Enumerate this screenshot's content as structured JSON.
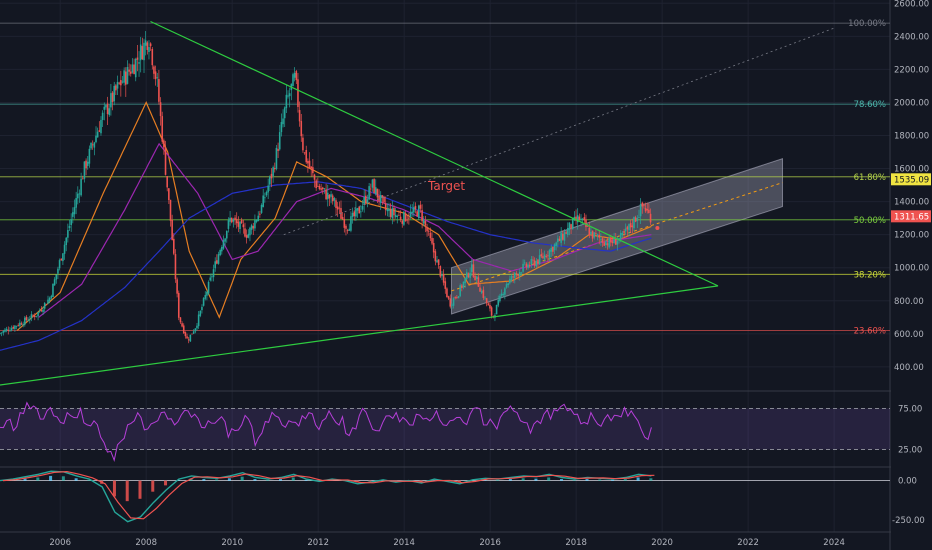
{
  "colors": {
    "background": "#131722",
    "grid": "#1e2230",
    "axis_text": "#b2b5be",
    "candle_up": "#26a69a",
    "candle_down": "#ef5350",
    "ma_orange": "#e67e22",
    "ma_purple": "#9c27b0",
    "ma_blue": "#2432c8",
    "triangle": "#2ecc40",
    "channel_fill": "rgba(180,180,200,0.35)",
    "target": "#ef5350",
    "rsi_line": "#b53fd8",
    "rsi_band": "rgba(126,87,194,0.18)",
    "macd_line": "#26a69a",
    "signal_line": "#ef5350"
  },
  "chart_data": [
    {
      "type": "candlestick",
      "xlabel": "",
      "ylabel": "",
      "x_ticks": [
        "2006",
        "2008",
        "2010",
        "2012",
        "2014",
        "2016",
        "2018",
        "2020",
        "2022",
        "2024"
      ],
      "x_range": [
        2004.6,
        2025.3
      ],
      "y_ticks": [
        "400.00",
        "600.00",
        "800.00",
        "1000.00",
        "1200.00",
        "1400.00",
        "1600.00",
        "1800.00",
        "2000.00",
        "2200.00",
        "2400.00",
        "2600.00"
      ],
      "ylim": [
        260,
        2620
      ],
      "price_path": [
        [
          2004.6,
          600
        ],
        [
          2005.0,
          650
        ],
        [
          2005.5,
          720
        ],
        [
          2005.8,
          820
        ],
        [
          2006.2,
          1200
        ],
        [
          2006.6,
          1600
        ],
        [
          2007.0,
          1900
        ],
        [
          2007.4,
          2100
        ],
        [
          2007.8,
          2250
        ],
        [
          2008.1,
          2400
        ],
        [
          2008.3,
          2100
        ],
        [
          2008.6,
          1300
        ],
        [
          2008.8,
          700
        ],
        [
          2009.0,
          560
        ],
        [
          2009.2,
          650
        ],
        [
          2009.5,
          900
        ],
        [
          2009.8,
          1150
        ],
        [
          2010.0,
          1300
        ],
        [
          2010.4,
          1200
        ],
        [
          2010.7,
          1350
        ],
        [
          2011.0,
          1600
        ],
        [
          2011.3,
          2000
        ],
        [
          2011.5,
          2150
        ],
        [
          2011.7,
          1700
        ],
        [
          2012.0,
          1500
        ],
        [
          2012.4,
          1400
        ],
        [
          2012.7,
          1250
        ],
        [
          2013.0,
          1350
        ],
        [
          2013.3,
          1500
        ],
        [
          2013.6,
          1350
        ],
        [
          2014.0,
          1300
        ],
        [
          2014.4,
          1350
        ],
        [
          2014.6,
          1200
        ],
        [
          2014.9,
          950
        ],
        [
          2015.1,
          780
        ],
        [
          2015.3,
          850
        ],
        [
          2015.6,
          1000
        ],
        [
          2015.9,
          820
        ],
        [
          2016.1,
          700
        ],
        [
          2016.4,
          900
        ],
        [
          2016.8,
          1000
        ],
        [
          2017.2,
          1050
        ],
        [
          2017.6,
          1150
        ],
        [
          2017.9,
          1250
        ],
        [
          2018.1,
          1300
        ],
        [
          2018.4,
          1200
        ],
        [
          2018.8,
          1150
        ],
        [
          2019.1,
          1180
        ],
        [
          2019.3,
          1250
        ],
        [
          2019.6,
          1380
        ],
        [
          2019.75,
          1311
        ]
      ],
      "moving_averages": [
        {
          "color": "orange",
          "path": [
            [
              2005.0,
              620
            ],
            [
              2006.0,
              850
            ],
            [
              2007.0,
              1450
            ],
            [
              2008.0,
              2000
            ],
            [
              2008.5,
              1700
            ],
            [
              2009.0,
              1100
            ],
            [
              2009.7,
              700
            ],
            [
              2010.2,
              1050
            ],
            [
              2011.0,
              1300
            ],
            [
              2011.5,
              1640
            ],
            [
              2012.2,
              1550
            ],
            [
              2013.0,
              1400
            ],
            [
              2014.0,
              1330
            ],
            [
              2014.8,
              1200
            ],
            [
              2015.5,
              900
            ],
            [
              2016.5,
              920
            ],
            [
              2017.5,
              1050
            ],
            [
              2018.3,
              1200
            ],
            [
              2019.0,
              1170
            ],
            [
              2019.75,
              1250
            ]
          ]
        },
        {
          "color": "purple",
          "path": [
            [
              2005.5,
              700
            ],
            [
              2006.5,
              900
            ],
            [
              2007.5,
              1350
            ],
            [
              2008.3,
              1750
            ],
            [
              2009.2,
              1450
            ],
            [
              2010.0,
              1050
            ],
            [
              2010.6,
              1100
            ],
            [
              2011.5,
              1400
            ],
            [
              2012.3,
              1480
            ],
            [
              2013.2,
              1420
            ],
            [
              2014.0,
              1350
            ],
            [
              2014.8,
              1250
            ],
            [
              2015.6,
              1050
            ],
            [
              2016.5,
              980
            ],
            [
              2017.5,
              1050
            ],
            [
              2018.5,
              1150
            ],
            [
              2019.75,
              1200
            ]
          ]
        },
        {
          "color": "blue",
          "path": [
            [
              2004.6,
              500
            ],
            [
              2005.5,
              560
            ],
            [
              2006.5,
              680
            ],
            [
              2007.5,
              880
            ],
            [
              2008.3,
              1100
            ],
            [
              2009.0,
              1300
            ],
            [
              2010.0,
              1450
            ],
            [
              2011.0,
              1500
            ],
            [
              2012.0,
              1520
            ],
            [
              2013.0,
              1480
            ],
            [
              2014.0,
              1380
            ],
            [
              2015.0,
              1280
            ],
            [
              2016.0,
              1200
            ],
            [
              2017.0,
              1150
            ],
            [
              2018.0,
              1120
            ],
            [
              2018.8,
              1100
            ],
            [
              2019.75,
              1180
            ]
          ]
        }
      ],
      "fibonacci_levels": [
        {
          "label": "100.00%",
          "value": 2480,
          "color": "#787b86"
        },
        {
          "label": "78.60%",
          "value": 1990,
          "color": "#4db6ac"
        },
        {
          "label": "61.80%",
          "value": 1550,
          "color": "#b5d44a"
        },
        {
          "label": "50.00%",
          "value": 1290,
          "color": "#7bcf3f"
        },
        {
          "label": "38.20%",
          "value": 960,
          "color": "#cddc39"
        },
        {
          "label": "23.60%",
          "value": 620,
          "color": "#ef5350"
        }
      ],
      "triangle_lines": [
        [
          [
            2008.1,
            2490
          ],
          [
            2021.3,
            890
          ]
        ],
        [
          [
            2004.6,
            290
          ],
          [
            2021.3,
            890
          ]
        ]
      ],
      "trend_extension": [
        [
          2011.2,
          1200
        ],
        [
          2024.0,
          2450
        ]
      ],
      "channel": {
        "lower": [
          [
            2015.1,
            720
          ],
          [
            2022.8,
            1370
          ]
        ],
        "upper": [
          [
            2015.1,
            1000
          ],
          [
            2022.8,
            1660
          ]
        ]
      },
      "target_label": "Target",
      "price_badges": [
        {
          "value": "1535.09",
          "y": 1535,
          "bg": "#f0e442",
          "fg": "#131722"
        },
        {
          "value": "1311.65",
          "y": 1311,
          "bg": "#ef5350",
          "fg": "#ffffff"
        }
      ]
    },
    {
      "type": "line",
      "xlabel": "",
      "ylabel": "",
      "y_ticks": [
        "25.00",
        "75.00"
      ],
      "band": [
        25,
        75
      ],
      "ylim": [
        5,
        95
      ],
      "values": [
        52,
        60,
        48,
        70,
        82,
        78,
        62,
        72,
        66,
        58,
        70,
        64,
        75,
        55,
        60,
        40,
        22,
        12,
        35,
        55,
        60,
        64,
        50,
        58,
        70,
        62,
        55,
        67,
        72,
        68,
        52,
        60,
        57,
        65,
        40,
        48,
        55,
        62,
        30,
        45,
        58,
        66,
        55,
        60,
        58,
        66,
        70,
        55,
        60,
        72,
        58,
        65,
        42,
        50,
        75,
        60,
        48,
        58,
        66,
        70,
        64,
        55,
        68,
        62,
        60,
        72,
        55,
        60,
        64,
        58,
        68,
        76,
        55,
        62,
        50,
        70,
        78,
        70,
        58,
        45,
        60,
        68,
        62,
        72,
        80,
        74,
        68,
        58,
        70,
        56,
        62,
        60,
        66,
        76,
        72,
        60,
        40,
        52
      ]
    },
    {
      "type": "line",
      "xlabel": "",
      "ylabel": "",
      "y_ticks": [
        "0.00",
        "-250.00"
      ],
      "ylim": [
        -300,
        80
      ],
      "macd": [
        0,
        10,
        25,
        40,
        60,
        55,
        30,
        10,
        -40,
        -200,
        -260,
        -230,
        -140,
        -60,
        10,
        30,
        20,
        15,
        30,
        50,
        20,
        10,
        20,
        40,
        10,
        -5,
        10,
        0,
        -20,
        -10,
        5,
        -10,
        0,
        -15,
        10,
        -5,
        -20,
        5,
        15,
        10,
        20,
        30,
        25,
        40,
        20,
        10,
        20,
        15,
        10,
        20,
        40,
        30
      ]
    }
  ]
}
